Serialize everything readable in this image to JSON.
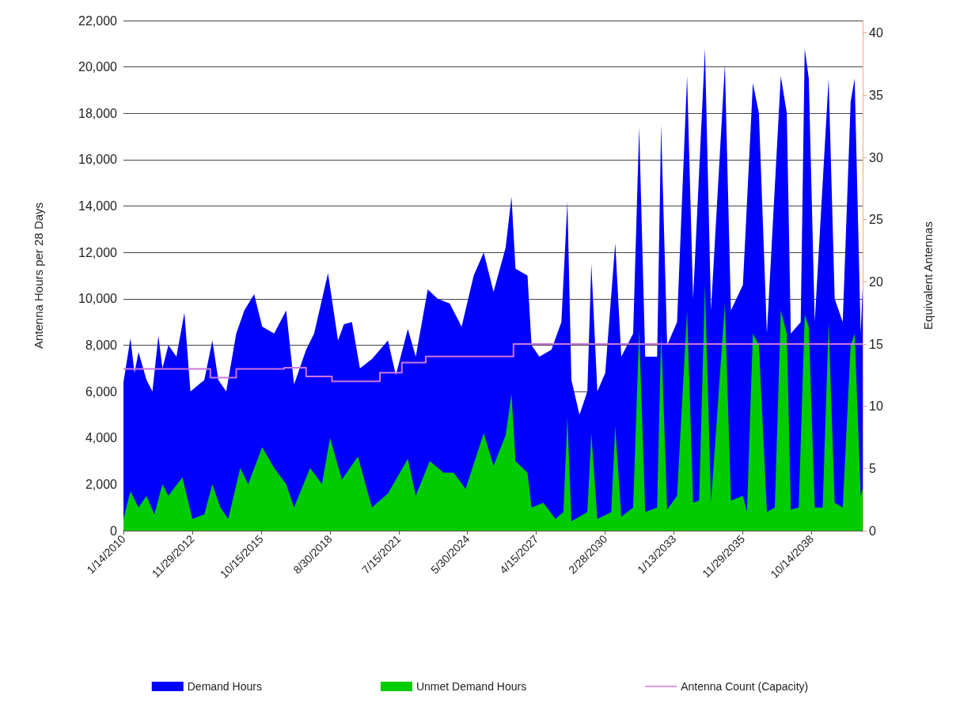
{
  "chart_data": {
    "type": "area",
    "ylabel": "Antenna Hours per 28 Days",
    "y2label": "Equivalent Antennas",
    "xlim": [
      "2010-01-14",
      "2040-12"
    ],
    "xticks": [
      {
        "value": "2010-01-14",
        "label": "1/14/2010"
      },
      {
        "value": "2012-11-29",
        "label": "11/29/2012"
      },
      {
        "value": "2015-10-15",
        "label": "10/15/2015"
      },
      {
        "value": "2018-08-30",
        "label": "8/30/2018"
      },
      {
        "value": "2021-07-15",
        "label": "7/15/2021"
      },
      {
        "value": "2024-05-30",
        "label": "5/30/2024"
      },
      {
        "value": "2027-04-15",
        "label": "4/15/2027"
      },
      {
        "value": "2030-02-28",
        "label": "2/28/2030"
      },
      {
        "value": "2033-01-13",
        "label": "1/13/2033"
      },
      {
        "value": "2035-11-29",
        "label": "11/29/2035"
      },
      {
        "value": "2038-10-14",
        "label": "10/14/2038"
      }
    ],
    "ylim": [
      0,
      22000
    ],
    "yticks": [
      0,
      {
        "value": 2000,
        "label": "2,000"
      },
      {
        "value": 4000,
        "label": "4,000"
      },
      {
        "value": 6000,
        "label": "6,000"
      },
      {
        "value": 8000,
        "label": "8,000"
      },
      {
        "value": 10000,
        "label": "10,000"
      },
      {
        "value": 12000,
        "label": "12,000"
      },
      {
        "value": 14000,
        "label": "14,000"
      },
      {
        "value": 16000,
        "label": "16,000"
      },
      {
        "value": 18000,
        "label": "18,000"
      },
      {
        "value": 20000,
        "label": "20,000"
      },
      {
        "value": 22000,
        "label": "22,000"
      }
    ],
    "y2lim": [
      0,
      41
    ],
    "y2ticks": [
      0,
      5,
      10,
      15,
      20,
      25,
      30,
      35,
      40
    ],
    "grid": "y",
    "legend": "bottom",
    "series": [
      {
        "name": "Demand Hours",
        "color": "#0000ff",
        "x": [
          "2010-01-14",
          "2010-05",
          "2010-07",
          "2010-09",
          "2011-01",
          "2011-04",
          "2011-07",
          "2011-09",
          "2011-12",
          "2012-04",
          "2012-08",
          "2012-11",
          "2013-06",
          "2013-10",
          "2014-01",
          "2014-05",
          "2014-10",
          "2015-02",
          "2015-07",
          "2015-11",
          "2016-05",
          "2016-11",
          "2017-03",
          "2017-09",
          "2018-01",
          "2018-08",
          "2019-01",
          "2019-04",
          "2019-08",
          "2019-12",
          "2020-06",
          "2021-02",
          "2021-06",
          "2021-12",
          "2022-04",
          "2022-10",
          "2023-03",
          "2023-09",
          "2024-03",
          "2024-09",
          "2025-02",
          "2025-07",
          "2026-01",
          "2026-04",
          "2026-06",
          "2026-12",
          "2027-02",
          "2027-06",
          "2027-12",
          "2028-05",
          "2028-08",
          "2028-10",
          "2029-02",
          "2029-06",
          "2029-08",
          "2029-11",
          "2030-03",
          "2030-08",
          "2030-11",
          "2031-05",
          "2031-08",
          "2031-11",
          "2032-05",
          "2032-07",
          "2032-10",
          "2033-03",
          "2033-08",
          "2033-11",
          "2034-05",
          "2034-08",
          "2035-03",
          "2035-06",
          "2035-12",
          "2036-05",
          "2036-08",
          "2036-12",
          "2037-07",
          "2037-10",
          "2037-12",
          "2038-05",
          "2038-07",
          "2038-09",
          "2038-12",
          "2039-07",
          "2039-10",
          "2040-02",
          "2040-06",
          "2040-08",
          "2040-11",
          "2040-12"
        ],
        "values": [
          6400,
          8300,
          6800,
          7700,
          6500,
          6000,
          8400,
          7000,
          8000,
          7500,
          9400,
          6000,
          6500,
          8200,
          6500,
          6000,
          8500,
          9500,
          10200,
          8800,
          8500,
          9500,
          6300,
          7800,
          8500,
          11100,
          8200,
          8900,
          9000,
          7000,
          7400,
          8200,
          6700,
          8700,
          7500,
          10400,
          10000,
          9800,
          8800,
          11000,
          12000,
          10300,
          12200,
          14400,
          11300,
          11000,
          8000,
          7500,
          7800,
          9000,
          14200,
          6500,
          5000,
          6000,
          11500,
          6000,
          6800,
          12400,
          7500,
          8500,
          17400,
          7500,
          7500,
          17500,
          8000,
          9000,
          19600,
          10000,
          20800,
          9500,
          20100,
          9500,
          10600,
          19300,
          18000,
          8500,
          19600,
          18000,
          8500,
          9000,
          20800,
          19500,
          9000,
          19500,
          10000,
          9000,
          18500,
          19500,
          8500,
          10500
        ]
      },
      {
        "name": "Unmet Demand Hours",
        "color": "#00cc00",
        "x": [
          "2010-01-14",
          "2010-05",
          "2010-09",
          "2011-01",
          "2011-05",
          "2011-09",
          "2011-12",
          "2012-07",
          "2012-12",
          "2013-06",
          "2013-10",
          "2014-02",
          "2014-06",
          "2014-12",
          "2015-04",
          "2015-11",
          "2016-05",
          "2016-11",
          "2017-03",
          "2017-11",
          "2018-05",
          "2018-09",
          "2019-03",
          "2019-11",
          "2020-06",
          "2021-02",
          "2021-12",
          "2022-04",
          "2022-11",
          "2023-06",
          "2023-11",
          "2024-05",
          "2025-02",
          "2025-07",
          "2026-01",
          "2026-04",
          "2026-06",
          "2026-12",
          "2027-02",
          "2027-08",
          "2028-02",
          "2028-06",
          "2028-08",
          "2028-10",
          "2029-06",
          "2029-08",
          "2029-11",
          "2030-06",
          "2030-08",
          "2030-11",
          "2031-05",
          "2031-08",
          "2031-11",
          "2032-05",
          "2032-07",
          "2032-10",
          "2033-03",
          "2033-08",
          "2033-11",
          "2034-02",
          "2034-05",
          "2034-08",
          "2035-03",
          "2035-06",
          "2035-12",
          "2036-02",
          "2036-05",
          "2036-08",
          "2036-12",
          "2037-04",
          "2037-07",
          "2037-10",
          "2037-12",
          "2038-04",
          "2038-07",
          "2038-09",
          "2038-12",
          "2039-04",
          "2039-07",
          "2039-10",
          "2040-02",
          "2040-06",
          "2040-08",
          "2040-11",
          "2040-12"
        ],
        "values": [
          500,
          1700,
          1000,
          1500,
          700,
          2000,
          1500,
          2300,
          500,
          700,
          2000,
          1000,
          500,
          2700,
          2000,
          3600,
          2700,
          2000,
          1000,
          2700,
          2000,
          4000,
          2200,
          3200,
          1000,
          1600,
          3100,
          1500,
          3000,
          2500,
          2500,
          1800,
          4200,
          2800,
          4100,
          5900,
          3000,
          2500,
          1000,
          1200,
          500,
          800,
          4900,
          400,
          800,
          4200,
          500,
          800,
          4500,
          600,
          1000,
          8700,
          800,
          1000,
          8500,
          900,
          1500,
          9500,
          1200,
          1300,
          10600,
          1200,
          9800,
          1300,
          1500,
          800,
          8500,
          8000,
          800,
          1000,
          9500,
          8500,
          900,
          1000,
          9300,
          8800,
          1000,
          1000,
          9000,
          1200,
          1000,
          8000,
          8500,
          1500,
          1800
        ]
      },
      {
        "name": "Antenna Count (Capacity)",
        "type": "step",
        "axis": "y2",
        "color": "#cc77dd",
        "x": [
          "2010-01-14",
          "2013-09",
          "2014-10",
          "2016-10",
          "2017-09",
          "2018-10",
          "2020-10",
          "2021-09",
          "2022-09",
          "2026-05",
          "2040-12"
        ],
        "values": [
          13,
          12.3,
          13,
          13.1,
          12.4,
          12,
          12.7,
          13.5,
          14,
          15,
          15
        ]
      }
    ]
  }
}
